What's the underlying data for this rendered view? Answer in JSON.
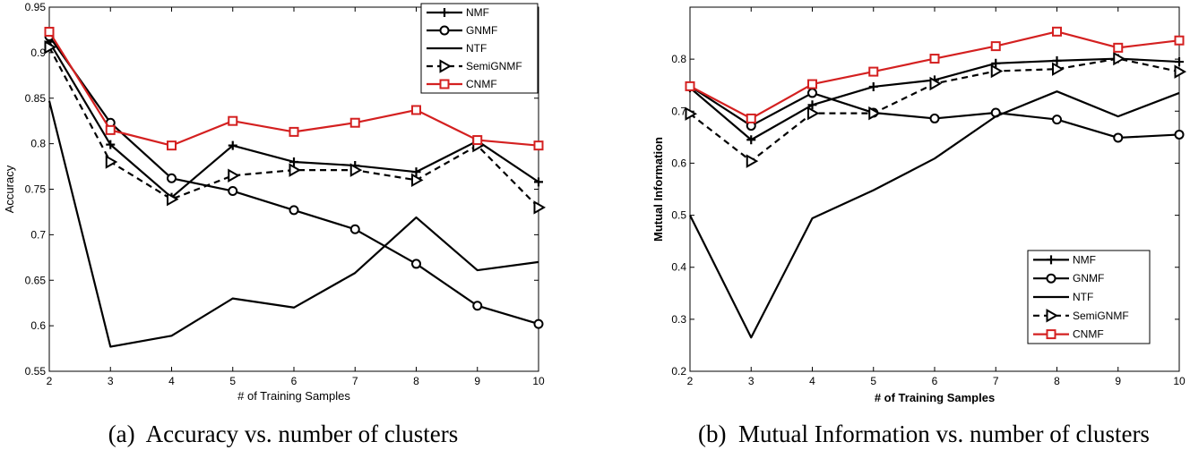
{
  "chart_data": [
    {
      "type": "line",
      "caption": "(a)  Accuracy vs. number of clusters",
      "xlabel": "# of Training Samples",
      "ylabel": "Accuracy",
      "xlim": [
        2,
        10
      ],
      "ylim": [
        0.55,
        0.95
      ],
      "x": [
        2,
        3,
        4,
        5,
        6,
        7,
        8,
        9,
        10
      ],
      "xticks": [
        "2",
        "3",
        "4",
        "5",
        "6",
        "7",
        "8",
        "9",
        "10"
      ],
      "yticks": [
        "0.55",
        "0.6",
        "0.65",
        "0.7",
        "0.75",
        "0.8",
        "0.85",
        "0.9",
        "0.95"
      ],
      "legend_position": "top-right",
      "series": [
        {
          "name": "NMF",
          "marker": "plus",
          "style": "solid",
          "color": "#000000",
          "values": [
            0.912,
            0.799,
            0.741,
            0.798,
            0.78,
            0.776,
            0.769,
            0.803,
            0.758
          ]
        },
        {
          "name": "GNMF",
          "marker": "circle",
          "style": "solid",
          "color": "#000000",
          "values": [
            0.918,
            0.823,
            0.762,
            0.748,
            0.727,
            0.706,
            0.668,
            0.622,
            0.602
          ]
        },
        {
          "name": "NTF",
          "marker": "none",
          "style": "solid",
          "color": "#000000",
          "values": [
            0.847,
            0.577,
            0.589,
            0.63,
            0.62,
            0.658,
            0.719,
            0.661,
            0.67
          ]
        },
        {
          "name": "SemiGNMF",
          "marker": "triangle",
          "style": "dashed",
          "color": "#000000",
          "values": [
            0.906,
            0.78,
            0.739,
            0.765,
            0.771,
            0.771,
            0.76,
            0.798,
            0.73
          ]
        },
        {
          "name": "CNMF",
          "marker": "square",
          "style": "solid",
          "color": "#d42020",
          "values": [
            0.923,
            0.815,
            0.798,
            0.825,
            0.813,
            0.823,
            0.837,
            0.804,
            0.798
          ]
        }
      ]
    },
    {
      "type": "line",
      "caption": "(b)  Mutual Information vs. number of clusters",
      "xlabel": "# of Training Samples",
      "ylabel": "Mutual Information",
      "xlim": [
        2,
        10
      ],
      "ylim": [
        0.2,
        0.9
      ],
      "x": [
        2,
        3,
        4,
        5,
        6,
        7,
        8,
        9,
        10
      ],
      "xticks": [
        "2",
        "3",
        "4",
        "5",
        "6",
        "7",
        "8",
        "9",
        "10"
      ],
      "yticks": [
        "0.2",
        "0.3",
        "0.4",
        "0.5",
        "0.6",
        "0.7",
        "0.8"
      ],
      "legend_position": "bottom-right",
      "series": [
        {
          "name": "NMF",
          "marker": "plus",
          "style": "solid",
          "color": "#000000",
          "values": [
            0.745,
            0.645,
            0.712,
            0.747,
            0.76,
            0.792,
            0.797,
            0.801,
            0.795
          ]
        },
        {
          "name": "GNMF",
          "marker": "circle",
          "style": "solid",
          "color": "#000000",
          "values": [
            0.748,
            0.672,
            0.735,
            0.697,
            0.686,
            0.697,
            0.684,
            0.649,
            0.655
          ]
        },
        {
          "name": "NTF",
          "marker": "none",
          "style": "solid",
          "color": "#000000",
          "values": [
            0.5,
            0.265,
            0.494,
            0.548,
            0.609,
            0.69,
            0.738,
            0.69,
            0.735
          ]
        },
        {
          "name": "SemiGNMF",
          "marker": "triangle",
          "style": "dashed",
          "color": "#000000",
          "values": [
            0.695,
            0.604,
            0.696,
            0.696,
            0.753,
            0.777,
            0.781,
            0.801,
            0.776
          ]
        },
        {
          "name": "CNMF",
          "marker": "square",
          "style": "solid",
          "color": "#d42020",
          "values": [
            0.748,
            0.686,
            0.752,
            0.776,
            0.801,
            0.825,
            0.853,
            0.822,
            0.836
          ]
        }
      ]
    }
  ]
}
